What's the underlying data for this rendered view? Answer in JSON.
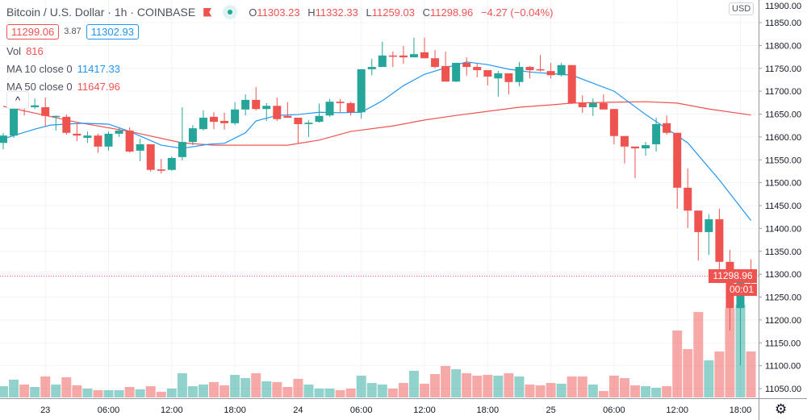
{
  "header": {
    "symbol_title": "Bitcoin / U.S. Dollar · 1h · COINBASE",
    "ohlc": {
      "o_label": "O",
      "o": "11303.23",
      "h_label": "H",
      "h": "11332.33",
      "l_label": "L",
      "l": "11259.03",
      "c_label": "C",
      "c": "11298.96",
      "change": "−4.27 (−0.04%)"
    },
    "bid": "11299.06",
    "spread": "3.87",
    "ask": "11302.93",
    "vol_label": "Vol",
    "vol_value": "816",
    "ma10_label": "MA 10 close 0",
    "ma10_value": "11417.33",
    "ma50_label": "MA 50 close 0",
    "ma50_value": "11647.96",
    "collapse_glyph": "^"
  },
  "price_axis": {
    "currency": "USD",
    "last_price": "11298.96",
    "countdown": "00:01",
    "ticks": [
      "11900.00",
      "11850.00",
      "11800.00",
      "11750.00",
      "11700.00",
      "11650.00",
      "11600.00",
      "11550.00",
      "11500.00",
      "11450.00",
      "11400.00",
      "11350.00",
      "11300.00",
      "11250.00",
      "11200.00",
      "11150.00",
      "11100.00",
      "11050.00"
    ]
  },
  "colors": {
    "up": "#26a69a",
    "down": "#ef5350",
    "ma10": "#2196f3",
    "ma50": "#ef5350",
    "grid": "#f0f3fa"
  },
  "chart_data": {
    "type": "candlestick",
    "title": "Bitcoin / U.S. Dollar · 1h · COINBASE",
    "ylim": [
      11035,
      11900
    ],
    "time_ticks": [
      {
        "index": 4,
        "label": "23"
      },
      {
        "index": 10,
        "label": "06:00"
      },
      {
        "index": 16,
        "label": "12:00"
      },
      {
        "index": 22,
        "label": "18:00"
      },
      {
        "index": 28,
        "label": "24"
      },
      {
        "index": 34,
        "label": "06:00"
      },
      {
        "index": 40,
        "label": "12:00"
      },
      {
        "index": 46,
        "label": "18:00"
      },
      {
        "index": 52,
        "label": "25"
      },
      {
        "index": 58,
        "label": "06:00"
      },
      {
        "index": 64,
        "label": "12:00"
      },
      {
        "index": 70,
        "label": "18:00"
      }
    ],
    "ohlc": [
      [
        11587,
        11609,
        11573,
        11603
      ],
      [
        11603,
        11672,
        11598,
        11667
      ],
      [
        11669,
        11674,
        11647,
        11665
      ],
      [
        11665,
        11684,
        11661,
        11669
      ],
      [
        11665,
        11686,
        11623,
        11646
      ],
      [
        11644,
        11647,
        11614,
        11646
      ],
      [
        11644,
        11649,
        11605,
        11609
      ],
      [
        11607,
        11630,
        11591,
        11603
      ],
      [
        11598,
        11612,
        11587,
        11603
      ],
      [
        11603,
        11607,
        11565,
        11579
      ],
      [
        11579,
        11612,
        11570,
        11607
      ],
      [
        11607,
        11621,
        11600,
        11614
      ],
      [
        11614,
        11621,
        11566,
        11568
      ],
      [
        11570,
        11596,
        11547,
        11584
      ],
      [
        11584,
        11584,
        11524,
        11528
      ],
      [
        11529,
        11552,
        11520,
        11526
      ],
      [
        11528,
        11557,
        11526,
        11554
      ],
      [
        11556,
        11665,
        11549,
        11589
      ],
      [
        11589,
        11626,
        11582,
        11619
      ],
      [
        11617,
        11658,
        11614,
        11642
      ],
      [
        11644,
        11654,
        11617,
        11633
      ],
      [
        11635,
        11653,
        11616,
        11630
      ],
      [
        11630,
        11676,
        11626,
        11660
      ],
      [
        11660,
        11693,
        11647,
        11681
      ],
      [
        11681,
        11709,
        11658,
        11661
      ],
      [
        11661,
        11674,
        11635,
        11668
      ],
      [
        11668,
        11686,
        11635,
        11639
      ],
      [
        11646,
        11676,
        11642,
        11642
      ],
      [
        11642,
        11642,
        11587,
        11628
      ],
      [
        11628,
        11637,
        11600,
        11631
      ],
      [
        11633,
        11673,
        11631,
        11646
      ],
      [
        11647,
        11683,
        11644,
        11677
      ],
      [
        11677,
        11683,
        11653,
        11674
      ],
      [
        11674,
        11677,
        11647,
        11654
      ],
      [
        11654,
        11748,
        11640,
        11748
      ],
      [
        11748,
        11771,
        11735,
        11753
      ],
      [
        11753,
        11808,
        11753,
        11778
      ],
      [
        11778,
        11787,
        11753,
        11776
      ],
      [
        11778,
        11799,
        11760,
        11774
      ],
      [
        11774,
        11817,
        11774,
        11781
      ],
      [
        11785,
        11817,
        11772,
        11772
      ],
      [
        11772,
        11790,
        11750,
        11753
      ],
      [
        11755,
        11787,
        11721,
        11721
      ],
      [
        11721,
        11762,
        11720,
        11762
      ],
      [
        11762,
        11774,
        11734,
        11753
      ],
      [
        11753,
        11760,
        11730,
        11746
      ],
      [
        11746,
        11746,
        11713,
        11732
      ],
      [
        11728,
        11744,
        11688,
        11739
      ],
      [
        11739,
        11739,
        11693,
        11720
      ],
      [
        11720,
        11764,
        11711,
        11753
      ],
      [
        11753,
        11755,
        11728,
        11746
      ],
      [
        11748,
        11779,
        11743,
        11746
      ],
      [
        11744,
        11762,
        11728,
        11735
      ],
      [
        11735,
        11762,
        11732,
        11757
      ],
      [
        11757,
        11757,
        11672,
        11674
      ],
      [
        11674,
        11691,
        11653,
        11665
      ],
      [
        11665,
        11684,
        11646,
        11674
      ],
      [
        11674,
        11693,
        11660,
        11660
      ],
      [
        11661,
        11661,
        11584,
        11602
      ],
      [
        11602,
        11602,
        11542,
        11579
      ],
      [
        11579,
        11579,
        11510,
        11575
      ],
      [
        11575,
        11589,
        11559,
        11582
      ],
      [
        11584,
        11642,
        11568,
        11628
      ],
      [
        11630,
        11647,
        11605,
        11609
      ],
      [
        11609,
        11609,
        11443,
        11489
      ],
      [
        11489,
        11531,
        11401,
        11439
      ],
      [
        11439,
        11439,
        11330,
        11392
      ],
      [
        11392,
        11431,
        11342,
        11420
      ],
      [
        11420,
        11443,
        11295,
        11327
      ],
      [
        11327,
        11353,
        11177,
        11226
      ],
      [
        11226,
        11310,
        11101,
        11303.23
      ],
      [
        11303.23,
        11332.33,
        11259.03,
        11298.96
      ]
    ],
    "volume": [
      200,
      315,
      229,
      186,
      372,
      229,
      358,
      215,
      157,
      129,
      129,
      129,
      186,
      143,
      200,
      100,
      157,
      429,
      200,
      229,
      272,
      215,
      400,
      343,
      429,
      286,
      272,
      186,
      329,
      229,
      157,
      157,
      129,
      157,
      386,
      257,
      229,
      157,
      257,
      472,
      243,
      415,
      558,
      500,
      429,
      386,
      400,
      386,
      429,
      372,
      229,
      215,
      257,
      243,
      372,
      372,
      229,
      114,
      386,
      343,
      215,
      200,
      172,
      200,
      1187,
      858,
      1516,
      658,
      815,
      1587,
      1645,
      816
    ],
    "ma10": [
      [
        0,
        11596
      ],
      [
        3,
        11617
      ],
      [
        4.5,
        11626
      ],
      [
        7.5,
        11630
      ],
      [
        10,
        11628
      ],
      [
        12,
        11612
      ],
      [
        15,
        11582
      ],
      [
        17,
        11575
      ],
      [
        19.5,
        11584
      ],
      [
        21,
        11586
      ],
      [
        23,
        11609
      ],
      [
        24,
        11635
      ],
      [
        26,
        11647
      ],
      [
        28,
        11649
      ],
      [
        30,
        11654
      ],
      [
        32,
        11653
      ],
      [
        34,
        11654
      ],
      [
        36,
        11679
      ],
      [
        38,
        11712
      ],
      [
        40,
        11737
      ],
      [
        42,
        11751
      ],
      [
        44,
        11764
      ],
      [
        46,
        11758
      ],
      [
        48,
        11748
      ],
      [
        50,
        11742
      ],
      [
        54,
        11735
      ],
      [
        58,
        11700
      ],
      [
        61,
        11649
      ],
      [
        65,
        11587
      ],
      [
        68,
        11506
      ],
      [
        71,
        11417.33
      ]
    ],
    "ma50": [
      [
        0,
        11667
      ],
      [
        4,
        11647
      ],
      [
        7,
        11632
      ],
      [
        12,
        11612
      ],
      [
        17,
        11587
      ],
      [
        20,
        11582
      ],
      [
        23,
        11582
      ],
      [
        27,
        11582
      ],
      [
        30,
        11593
      ],
      [
        33,
        11612
      ],
      [
        37,
        11624
      ],
      [
        40,
        11637
      ],
      [
        43,
        11647
      ],
      [
        46,
        11656
      ],
      [
        49,
        11665
      ],
      [
        52,
        11670
      ],
      [
        54,
        11674
      ],
      [
        58,
        11676
      ],
      [
        61,
        11677
      ],
      [
        64,
        11674
      ],
      [
        67,
        11661
      ],
      [
        71,
        11647.96
      ]
    ]
  }
}
